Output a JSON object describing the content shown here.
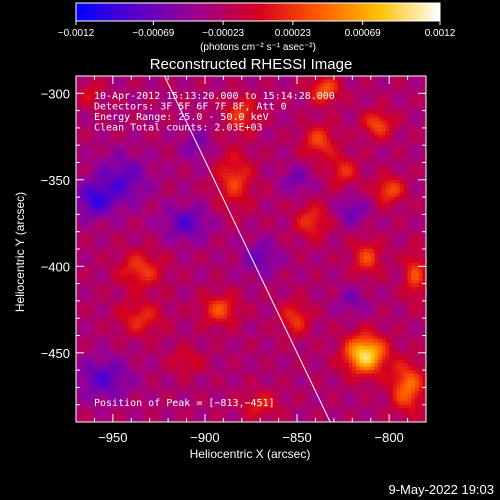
{
  "chart_data": {
    "type": "heatmap",
    "title": "Reconstructed RHESSI Image",
    "xlabel": "Heliocentric X (arcsec)",
    "ylabel": "Heliocentric Y (arcsec)",
    "xlim": [
      -970,
      -780
    ],
    "ylim": [
      -490,
      -290
    ],
    "x_ticks": [
      {
        "value": -950,
        "label": "−950"
      },
      {
        "value": -900,
        "label": "−900"
      },
      {
        "value": -850,
        "label": "−850"
      },
      {
        "value": -800,
        "label": "−800"
      }
    ],
    "y_ticks": [
      {
        "value": -300,
        "label": "−300"
      },
      {
        "value": -350,
        "label": "−350"
      },
      {
        "value": -400,
        "label": "−400"
      },
      {
        "value": -450,
        "label": "−450"
      }
    ],
    "colorbar": {
      "range": [
        -0.0012,
        0.0012
      ],
      "unit_label": "(photons cm⁻² s⁻¹ asec⁻²)",
      "ticks": [
        {
          "value": -0.0012,
          "label": "−0.0012"
        },
        {
          "value": -0.00069,
          "label": "−0.00069"
        },
        {
          "value": -0.00023,
          "label": "−0.00023"
        },
        {
          "value": 0.00023,
          "label": "0.00023"
        },
        {
          "value": 0.00069,
          "label": "0.00069"
        },
        {
          "value": 0.0012,
          "label": "0.0012"
        }
      ],
      "colors": [
        "#0000ff",
        "#5a00c8",
        "#9d008d",
        "#d40020",
        "#ff5a00",
        "#ffc200",
        "#ffffff"
      ]
    },
    "info_lines": [
      "10-Apr-2012 15:13:20.000 to 15:14:28.000",
      "Detectors: 3F 5F 6F 7F 8F, Att 0",
      "Energy Range: 25.0 - 50.0 keV",
      "Clean    Total counts: 2.03E+03"
    ],
    "peak_label": "Position of Peak = [−813,−451]",
    "peak": {
      "x": -813,
      "y": -451
    },
    "limb_line": [
      {
        "x": -922,
        "y": -290
      },
      {
        "x": -832,
        "y": -490
      }
    ],
    "hot_spots": [
      {
        "x": -813,
        "y": -451,
        "amp": 0.00125,
        "sx": 11,
        "sy": 11
      },
      {
        "x": -790,
        "y": -470,
        "amp": 0.00075,
        "sx": 9,
        "sy": 14
      },
      {
        "x": -935,
        "y": -402,
        "amp": 0.00052,
        "sx": 12,
        "sy": 11
      },
      {
        "x": -935,
        "y": -430,
        "amp": 0.00045,
        "sx": 12,
        "sy": 10
      },
      {
        "x": -892,
        "y": -425,
        "amp": 0.00058,
        "sx": 10,
        "sy": 9
      },
      {
        "x": -884,
        "y": -350,
        "amp": 0.00052,
        "sx": 10,
        "sy": 16
      },
      {
        "x": -880,
        "y": -312,
        "amp": 0.0005,
        "sx": 9,
        "sy": 10
      },
      {
        "x": -835,
        "y": -298,
        "amp": 0.00065,
        "sx": 8,
        "sy": 8
      },
      {
        "x": -838,
        "y": -328,
        "amp": 0.00055,
        "sx": 9,
        "sy": 10
      },
      {
        "x": -842,
        "y": -374,
        "amp": 0.0005,
        "sx": 9,
        "sy": 10
      },
      {
        "x": -825,
        "y": -345,
        "amp": 0.00045,
        "sx": 8,
        "sy": 9
      },
      {
        "x": -806,
        "y": -318,
        "amp": 0.0006,
        "sx": 8,
        "sy": 8
      },
      {
        "x": -800,
        "y": -356,
        "amp": 0.0006,
        "sx": 8,
        "sy": 8
      },
      {
        "x": -812,
        "y": -395,
        "amp": 0.00055,
        "sx": 8,
        "sy": 10
      },
      {
        "x": -786,
        "y": -405,
        "amp": 0.00055,
        "sx": 6,
        "sy": 14
      },
      {
        "x": -851,
        "y": -430,
        "amp": 0.0005,
        "sx": 8,
        "sy": 10
      },
      {
        "x": -870,
        "y": -480,
        "amp": 0.0004,
        "sx": 10,
        "sy": 8
      },
      {
        "x": -962,
        "y": -300,
        "amp": 0.0003,
        "sx": 6,
        "sy": 8
      },
      {
        "x": -910,
        "y": -455,
        "amp": 0.0003,
        "sx": 9,
        "sy": 8
      }
    ],
    "cold_spots": [
      {
        "x": -960,
        "y": -362,
        "amp": 0.0006,
        "sx": 10,
        "sy": 10
      },
      {
        "x": -945,
        "y": -350,
        "amp": 0.0005,
        "sx": 14,
        "sy": 14
      },
      {
        "x": -955,
        "y": -465,
        "amp": 0.0005,
        "sx": 14,
        "sy": 12
      },
      {
        "x": -910,
        "y": -375,
        "amp": 0.0005,
        "sx": 12,
        "sy": 10
      },
      {
        "x": -870,
        "y": -395,
        "amp": 0.0004,
        "sx": 10,
        "sy": 10
      },
      {
        "x": -850,
        "y": -350,
        "amp": 0.00035,
        "sx": 8,
        "sy": 8
      },
      {
        "x": -820,
        "y": -368,
        "amp": 0.0004,
        "sx": 8,
        "sy": 8
      },
      {
        "x": -820,
        "y": -420,
        "amp": 0.0003,
        "sx": 8,
        "sy": 8
      },
      {
        "x": -905,
        "y": -330,
        "amp": 0.0003,
        "sx": 8,
        "sy": 10
      }
    ]
  },
  "footer": {
    "timestamp": "9-May-2022 19:03"
  }
}
